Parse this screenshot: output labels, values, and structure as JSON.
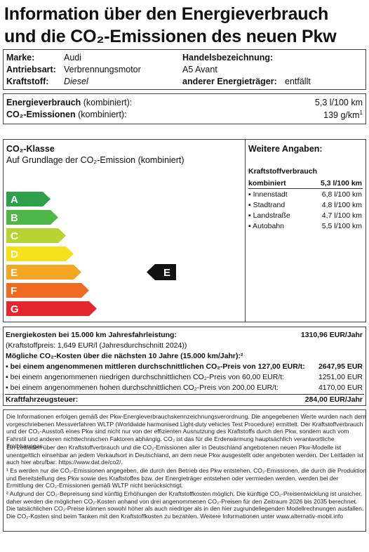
{
  "title": {
    "line1": "Information über den Energieverbrauch",
    "line2": "und die CO₂-Emissionen des neuen Pkw"
  },
  "vehicle": {
    "marke_label": "Marke:",
    "marke": "Audi",
    "antrieb_label": "Antriebsart:",
    "antrieb": "Verbrennungsmotor",
    "kraftstoff_label": "Kraftstoff:",
    "kraftstoff": "Diesel",
    "handel_label": "Handelsbezeichnung:",
    "handel": "A5 Avant",
    "weitere_label": "anderer Energieträger:",
    "weitere": "entfällt"
  },
  "consumption": {
    "energy_label_b": "Energieverbrauch",
    "energy_label": " (kombiniert):",
    "energy_value": "5,3 l/100 km",
    "co2_label_b": "CO₂-Emissionen",
    "co2_label": " (kombiniert):",
    "co2_value": "139 g/km",
    "co2_sup": "1"
  },
  "co2class": {
    "heading": "CO₂-Klasse",
    "sub": "Auf Grundlage der CO₂-Emission (kombiniert)",
    "classes": [
      "A",
      "B",
      "C",
      "D",
      "E",
      "F",
      "G"
    ],
    "colors": [
      "#2ea04a",
      "#4db848",
      "#b8d432",
      "#f6e21c",
      "#f5a623",
      "#ef6b22",
      "#e5262e"
    ],
    "current": "E"
  },
  "further": {
    "heading": "Weitere Angaben:",
    "sub": "Kraftstoffverbrauch",
    "combined_label": "kombiniert",
    "combined_value": "5,3 l/100 km",
    "rows": [
      {
        "label": "Innenstadt",
        "value": "6,8 l/100 km"
      },
      {
        "label": "Stadtrand",
        "value": "4,8 l/100 km"
      },
      {
        "label": "Landstraße",
        "value": "4,7 l/100 km"
      },
      {
        "label": "Autobahn",
        "value": "5,5 l/100 km"
      }
    ]
  },
  "costs": {
    "energy_label": "Energiekosten bei 15.000 km Jahresfahrleistung:",
    "energy_value": "1310,96 EUR/Jahr",
    "price_note": "(Kraftstoffpreis: 1,649 EUR/l (Jahresdurchschnitt 2024))",
    "co2_heading": "Mögliche CO₂-Kosten über die nächsten 10 Jahre (15.000 km/Jahr):²",
    "co2_rows": [
      {
        "label": "bei einem angenommenen mittleren durchschnittlichen CO₂-Preis von 127,00 EUR/t:",
        "value": "2647,95 EUR",
        "bold": true
      },
      {
        "label": "bei einem angenommenen niedrigen durchschnittlichen CO₂-Preis von 60,00 EUR/t:",
        "value": "1251,00 EUR",
        "bold": false
      },
      {
        "label": "bei einem angenommenen hohen durchschnittlichen CO₂-Preis von 200,00 EUR/t:",
        "value": "4170,00 EUR",
        "bold": false
      }
    ],
    "tax_label": "Kraftfahrzeugsteuer:",
    "tax_value": "284,00 EUR/Jahr"
  },
  "notes": {
    "p1": "Die Informationen erfolgen gemäß der Pkw-Energieverbrauchskennzeichnungsverordnung. Die angegebenen Werte wurden nach dem vorgeschriebenen Messverfahren WLTP (Worldwide harmonised Light-duty vehicles Test Procedure) ermittelt. Der Kraftstoffverbrauch und der CO₂-Ausstoß eines Pkw sind nicht nur von der effizienten Ausnutzung des Kraftstoffs durch den Pkw, sondern auch vom Fahrstil und anderen nichttechnischen Faktoren abhängig. CO₂ ist das für die Erderwärmung hauptsächlich verantwortliche Treibhausgas.",
    "p2": "Ein Leitfaden über den Kraftstoffverbrauch und die CO₂-Emissionen aller in Deutschland angebotenen neuen Pkw-Modelle ist unentgeltlich einsehbar an jedem Verkaufsort in Deutschland, an dem neue Pkw ausgestellt oder angeboten werden. Der Leitfaden ist auch hier abrufbar: https://www.dat.de/co2/.",
    "p3": "¹ Es werden nur die CO₂-Emissionen angegeben, die durch den Betrieb des Pkw entstehen. CO₂-Emissionen, die durch die Produktion und Bereitstellung des Pkw sowie des Kraftstoffes bzw. der Energieträger entstehen oder vermieden werden, werden bei der Ermittlung der CO₂-Emissionen gemäß WLTP nicht berücksichtigt.",
    "p4": "² Aufgrund der CO₂-Bepreisung sind künftig Erhöhungen der Kraftstoffkosten möglich. Die künftige CO₂-Preisentwicklung ist unsicher, daher werden die möglichen CO₂-Kosten anhand von drei angenommenen CO₂-Preisen für den Zeitraum 2026 bis 2035 berechnet. Die tatsächlichen CO₂-Preise können sowohl höher als auch niedriger als in den hier zugrundeliegenden Modellrechnungen ausfallen. Die CO₂-Kosten sind beim Tanken mit den Kraftstoffkosten zu bezahlen. Weitere Informationen unter www.alternativ-mobil.info"
  }
}
